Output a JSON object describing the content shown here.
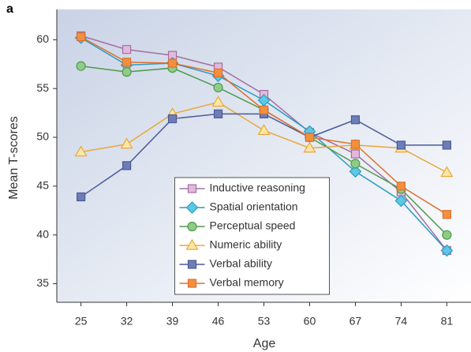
{
  "chart_data": {
    "type": "line",
    "panel_label": "a",
    "x_label": "Age",
    "y_label": "Mean T-scores",
    "x": [
      25,
      32,
      39,
      46,
      53,
      60,
      67,
      74,
      81
    ],
    "xlim": [
      21.3,
      84.7
    ],
    "xticks": [
      25,
      32,
      39,
      46,
      53,
      60,
      67,
      74,
      81
    ],
    "ylim": [
      33.1,
      63.1
    ],
    "yticks": [
      35,
      40,
      45,
      50,
      55,
      60
    ],
    "legend": "lower center",
    "series": [
      {
        "name": "Inductive reasoning",
        "color": "#a56fa0",
        "fill": "#e2b9dc",
        "marker": "square",
        "values": [
          60.4,
          59.0,
          58.4,
          57.2,
          54.4,
          50.5,
          48.3,
          44.4,
          38.4
        ]
      },
      {
        "name": "Spatial orientation",
        "color": "#2a9cc4",
        "fill": "#5cc8e6",
        "marker": "diamond",
        "values": [
          60.2,
          57.4,
          57.6,
          56.3,
          53.8,
          50.6,
          46.5,
          43.5,
          38.4
        ]
      },
      {
        "name": "Perceptual speed",
        "color": "#4e9a4e",
        "fill": "#8fcc86",
        "marker": "circle",
        "values": [
          57.3,
          56.7,
          57.1,
          55.1,
          52.8,
          50.0,
          47.3,
          44.7,
          40.0
        ]
      },
      {
        "name": "Numeric ability",
        "color": "#e8a838",
        "fill": "#fde7a6",
        "marker": "triangle",
        "values": [
          48.5,
          49.3,
          52.4,
          53.6,
          50.7,
          48.9,
          49.2,
          48.9,
          46.4
        ]
      },
      {
        "name": "Verbal ability",
        "color": "#4a5a98",
        "fill": "#6e7db8",
        "marker": "square",
        "values": [
          43.9,
          47.1,
          51.9,
          52.4,
          52.4,
          50.0,
          51.8,
          49.2,
          49.2
        ]
      },
      {
        "name": "Verbal memory",
        "color": "#e0702a",
        "fill": "#f39040",
        "marker": "square",
        "values": [
          60.3,
          57.7,
          57.6,
          56.6,
          52.8,
          50.0,
          49.3,
          45.0,
          42.1
        ]
      }
    ]
  }
}
